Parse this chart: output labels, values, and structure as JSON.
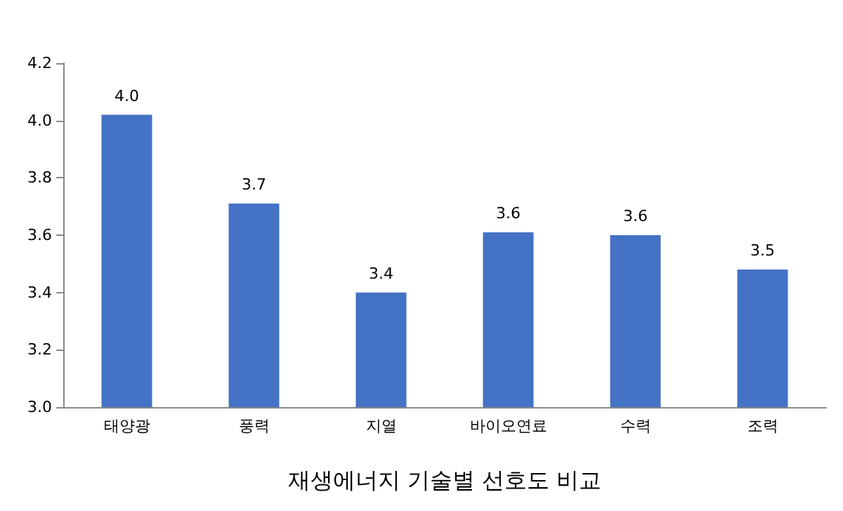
{
  "chart_data": {
    "type": "bar",
    "xlabel": "재생에너지 기술별 선호도 비교",
    "categories": [
      "태양광",
      "풍력",
      "지열",
      "바이오연료",
      "수력",
      "조력"
    ],
    "values": [
      4.02,
      3.71,
      3.4,
      3.61,
      3.6,
      3.48
    ],
    "value_labels": [
      "4.0",
      "3.7",
      "3.4",
      "3.6",
      "3.6",
      "3.5"
    ],
    "color": "#4472c4",
    "ylim": [
      3.0,
      4.2
    ],
    "yticks": [
      {
        "value": 3.0,
        "label": "3.0"
      },
      3.2,
      3.4,
      3.6,
      3.8,
      {
        "value": 4.0,
        "label": "4.0"
      },
      4.2
    ],
    "grid": false
  }
}
